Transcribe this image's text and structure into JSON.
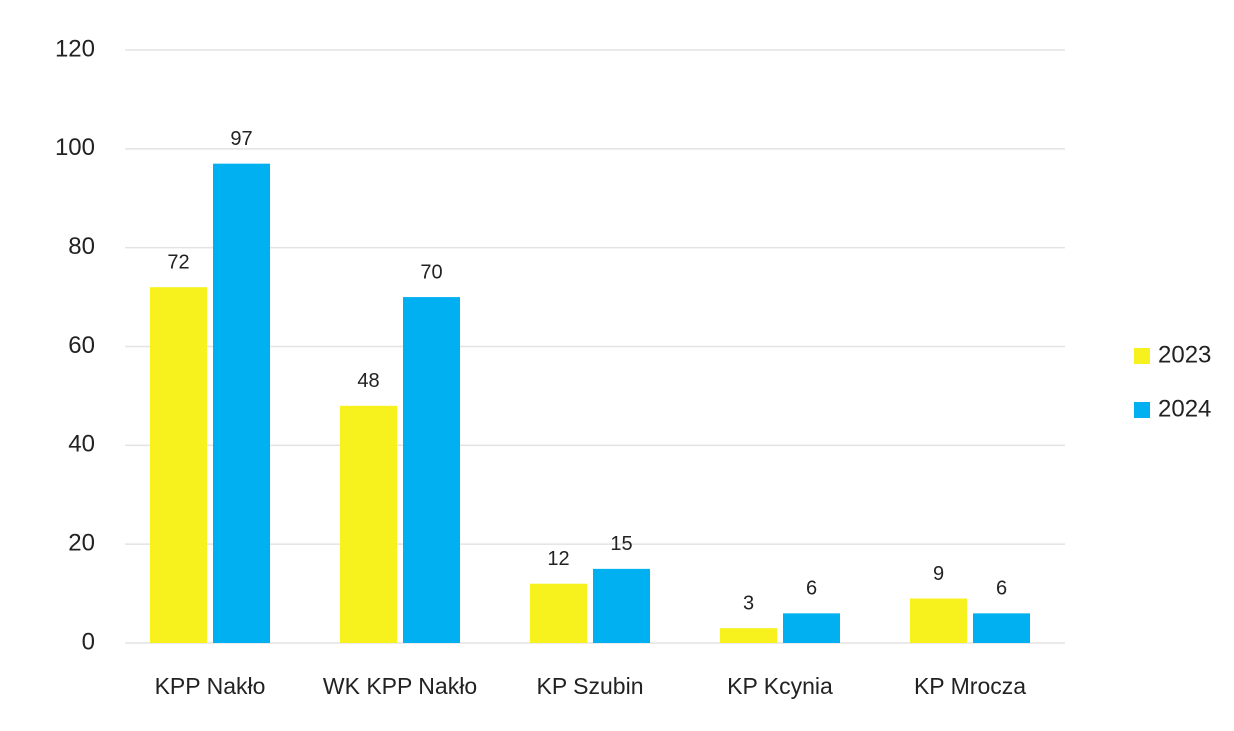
{
  "chart_data": {
    "type": "bar",
    "categories": [
      "KPP Nakło",
      "WK KPP Nakło",
      "KP Szubin",
      "KP Kcynia",
      "KP Mrocza"
    ],
    "series": [
      {
        "name": "2023",
        "color": "#f7f21e",
        "values": [
          72,
          48,
          12,
          3,
          9
        ]
      },
      {
        "name": "2024",
        "color": "#00b0f0",
        "values": [
          97,
          70,
          15,
          6,
          6
        ]
      }
    ],
    "ylim": [
      0,
      120
    ],
    "yticks": [
      0,
      20,
      40,
      60,
      80,
      100,
      120
    ],
    "grid": true,
    "legend": "right"
  }
}
